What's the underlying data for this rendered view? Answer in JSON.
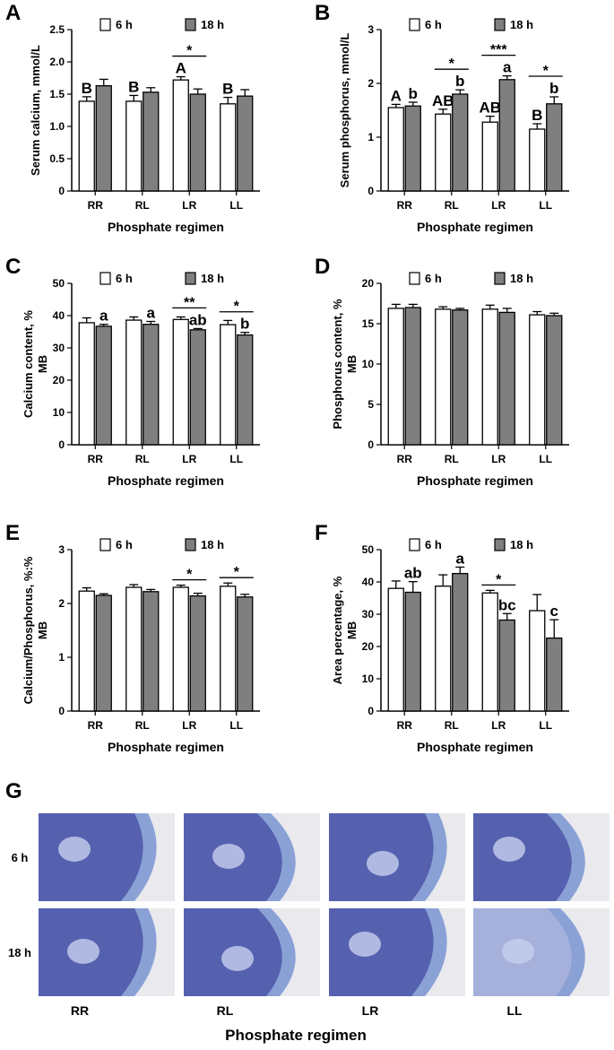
{
  "chart_data": [
    {
      "type": "bar",
      "panel": "A",
      "ylabel": [
        "Serum calcium, mmol/L"
      ],
      "xlabel": "Phosphate regimen",
      "categories": [
        "RR",
        "RL",
        "LR",
        "LL"
      ],
      "series": [
        {
          "name": "6 h",
          "color": "#ffffff",
          "values": [
            1.39,
            1.39,
            1.72,
            1.35
          ],
          "errors": [
            0.07,
            0.09,
            0.05,
            0.1
          ],
          "letters": [
            "B",
            "B",
            "A",
            "B"
          ]
        },
        {
          "name": "18 h",
          "color": "#7f7f7f",
          "values": [
            1.63,
            1.53,
            1.5,
            1.47
          ],
          "errors": [
            0.1,
            0.07,
            0.08,
            0.1
          ]
        }
      ],
      "significance": [
        null,
        null,
        "*",
        null
      ],
      "ylim": [
        0,
        2.5
      ],
      "yticks": [
        0,
        0.5,
        {
          "value": 1,
          "label": "1.0"
        },
        1.5,
        {
          "value": 2,
          "label": "2.0"
        },
        2.5
      ]
    },
    {
      "type": "bar",
      "panel": "B",
      "ylabel": [
        "Serum phosphorus, mmol/L"
      ],
      "xlabel": "Phosphate regimen",
      "categories": [
        "RR",
        "RL",
        "LR",
        "LL"
      ],
      "series": [
        {
          "name": "6 h",
          "color": "#ffffff",
          "values": [
            1.55,
            1.43,
            1.28,
            1.15
          ],
          "errors": [
            0.06,
            0.09,
            0.11,
            0.1
          ],
          "letters": [
            "A",
            "AB",
            "AB",
            "B"
          ]
        },
        {
          "name": "18 h",
          "color": "#7f7f7f",
          "values": [
            1.58,
            1.8,
            2.07,
            1.62
          ],
          "errors": [
            0.07,
            0.08,
            0.07,
            0.13
          ],
          "letters": [
            "b",
            "b",
            "a",
            "b"
          ]
        }
      ],
      "significance": [
        null,
        "*",
        "***",
        "*"
      ],
      "ylim": [
        0,
        3
      ],
      "yticks": [
        0,
        1,
        2,
        3
      ]
    },
    {
      "type": "bar",
      "panel": "C",
      "ylabel": [
        "Calcium content, %",
        "MB"
      ],
      "xlabel": "Phosphate regimen",
      "categories": [
        "RR",
        "RL",
        "LR",
        "LL"
      ],
      "series": [
        {
          "name": "6 h",
          "color": "#ffffff",
          "values": [
            37.8,
            38.6,
            38.8,
            37.2
          ],
          "errors": [
            1.5,
            1,
            0.8,
            1.3
          ]
        },
        {
          "name": "18 h",
          "color": "#7f7f7f",
          "values": [
            36.7,
            37.3,
            35.6,
            34
          ],
          "errors": [
            0.6,
            0.9,
            0.4,
            0.8
          ],
          "letters": [
            "a",
            "a",
            "ab",
            "b"
          ]
        }
      ],
      "significance": [
        null,
        null,
        "**",
        "*"
      ],
      "ylim": [
        0,
        50
      ],
      "yticks": [
        0,
        10,
        20,
        30,
        40,
        50
      ]
    },
    {
      "type": "bar",
      "panel": "D",
      "ylabel": [
        "Phosphorus content, %",
        "MB"
      ],
      "xlabel": "Phosphate regimen",
      "categories": [
        "RR",
        "RL",
        "LR",
        "LL"
      ],
      "series": [
        {
          "name": "6 h",
          "color": "#ffffff",
          "values": [
            16.9,
            16.8,
            16.8,
            16.1
          ],
          "errors": [
            0.5,
            0.3,
            0.5,
            0.4
          ]
        },
        {
          "name": "18 h",
          "color": "#7f7f7f",
          "values": [
            17,
            16.7,
            16.4,
            16
          ],
          "errors": [
            0.4,
            0.2,
            0.5,
            0.3
          ]
        }
      ],
      "ylim": [
        0,
        20
      ],
      "yticks": [
        0,
        5,
        10,
        15,
        20
      ]
    },
    {
      "type": "bar",
      "panel": "E",
      "ylabel": [
        "Calcium/Phosphorus, %:%",
        "MB"
      ],
      "xlabel": "Phosphate regimen",
      "categories": [
        "RR",
        "RL",
        "LR",
        "LL"
      ],
      "series": [
        {
          "name": "6 h",
          "color": "#ffffff",
          "values": [
            2.23,
            2.3,
            2.3,
            2.32
          ],
          "errors": [
            0.06,
            0.05,
            0.04,
            0.06
          ]
        },
        {
          "name": "18 h",
          "color": "#7f7f7f",
          "values": [
            2.15,
            2.22,
            2.14,
            2.12
          ],
          "errors": [
            0.03,
            0.04,
            0.05,
            0.05
          ]
        }
      ],
      "significance": [
        null,
        null,
        "*",
        "*"
      ],
      "ylim": [
        0,
        3
      ],
      "yticks": [
        0,
        1,
        2,
        3
      ]
    },
    {
      "type": "bar",
      "panel": "F",
      "ylabel": [
        "Area percentage, %",
        "MB"
      ],
      "xlabel": "Phosphate regimen",
      "categories": [
        "RR",
        "RL",
        "LR",
        "LL"
      ],
      "series": [
        {
          "name": "6 h",
          "color": "#ffffff",
          "values": [
            38,
            38.7,
            36.6,
            31.1
          ],
          "errors": [
            2.3,
            3.5,
            0.8,
            5
          ]
        },
        {
          "name": "18 h",
          "color": "#7f7f7f",
          "values": [
            36.8,
            42.6,
            28.2,
            22.6
          ],
          "errors": [
            3.3,
            2,
            2,
            5.7
          ],
          "letters": [
            "ab",
            "a",
            "bc",
            "c"
          ]
        }
      ],
      "significance": [
        null,
        null,
        "*",
        null
      ],
      "ylim": [
        0,
        50
      ],
      "yticks": [
        0,
        10,
        20,
        30,
        40,
        50
      ]
    }
  ],
  "panel_g": {
    "panel": "G",
    "rows": [
      "6 h",
      "18 h"
    ],
    "columns": [
      "RR",
      "RL",
      "LR",
      "LL"
    ],
    "xlabel": "Phosphate regimen"
  }
}
